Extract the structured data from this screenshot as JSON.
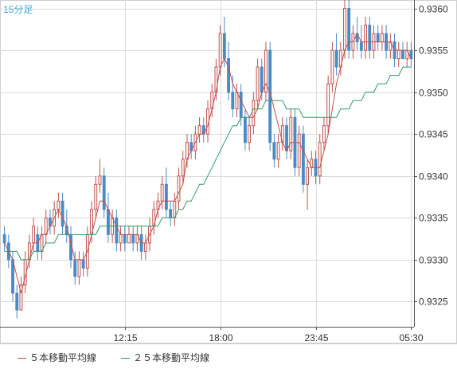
{
  "timeframe": "15分足",
  "legend": [
    {
      "label": "５本移動平均線",
      "color": "#c0504d"
    },
    {
      "label": "２５本移動平均線",
      "color": "#2e9d68"
    }
  ],
  "colors": {
    "up": "#c0504d",
    "down": "#4a8bc6",
    "ma5": "#c0504d",
    "ma25": "#2e9d68",
    "grid": "#dcdcdc",
    "axis": "#555555",
    "timeframe": "#3fa9d8"
  },
  "chart_data": {
    "type": "candlestick",
    "title": "",
    "ylim": [
      0.9322,
      0.9361
    ],
    "yticks": [
      "0.9325",
      "0.9330",
      "0.9335",
      "0.9340",
      "0.9345",
      "0.9350",
      "0.9355",
      "0.9360"
    ],
    "xticks": [
      {
        "label": "12:15",
        "index": 29
      },
      {
        "label": "18:00",
        "index": 52
      },
      {
        "label": "23:45",
        "index": 75
      },
      {
        "label": "05:30",
        "index": 98
      }
    ],
    "grid": true,
    "legend_position": "bottom",
    "candles_ohlc": [
      [
        0.9333,
        0.9334,
        0.9331,
        0.9332
      ],
      [
        0.9332,
        0.9333,
        0.9329,
        0.933
      ],
      [
        0.933,
        0.9331,
        0.9325,
        0.9326
      ],
      [
        0.9326,
        0.9327,
        0.9323,
        0.9324
      ],
      [
        0.9324,
        0.9328,
        0.9324,
        0.9327
      ],
      [
        0.9327,
        0.9331,
        0.9326,
        0.933
      ],
      [
        0.933,
        0.9333,
        0.9329,
        0.9332
      ],
      [
        0.9332,
        0.9335,
        0.9331,
        0.9334
      ],
      [
        0.9333,
        0.9334,
        0.933,
        0.9331
      ],
      [
        0.9331,
        0.9334,
        0.933,
        0.9333
      ],
      [
        0.9333,
        0.9336,
        0.9332,
        0.9335
      ],
      [
        0.9335,
        0.9336,
        0.9333,
        0.9334
      ],
      [
        0.9334,
        0.9337,
        0.9333,
        0.9336
      ],
      [
        0.9336,
        0.9338,
        0.9335,
        0.9337
      ],
      [
        0.9337,
        0.9338,
        0.9333,
        0.9334
      ],
      [
        0.9334,
        0.9336,
        0.9332,
        0.9333
      ],
      [
        0.9333,
        0.9334,
        0.9329,
        0.933
      ],
      [
        0.933,
        0.9331,
        0.9327,
        0.9328
      ],
      [
        0.9328,
        0.9331,
        0.9327,
        0.933
      ],
      [
        0.933,
        0.9331,
        0.9328,
        0.9329
      ],
      [
        0.9329,
        0.9334,
        0.9328,
        0.9333
      ],
      [
        0.9333,
        0.9337,
        0.9332,
        0.9336
      ],
      [
        0.9336,
        0.934,
        0.9335,
        0.9339
      ],
      [
        0.9339,
        0.9342,
        0.9338,
        0.934
      ],
      [
        0.934,
        0.9341,
        0.9335,
        0.9336
      ],
      [
        0.9336,
        0.9338,
        0.9332,
        0.9333
      ],
      [
        0.9333,
        0.9336,
        0.9332,
        0.9335
      ],
      [
        0.9335,
        0.9336,
        0.9331,
        0.9332
      ],
      [
        0.9332,
        0.9334,
        0.9331,
        0.9333
      ],
      [
        0.9333,
        0.9334,
        0.9331,
        0.9332
      ],
      [
        0.9332,
        0.9334,
        0.9332,
        0.9333
      ],
      [
        0.9333,
        0.9334,
        0.9331,
        0.9332
      ],
      [
        0.9332,
        0.9334,
        0.9331,
        0.9333
      ],
      [
        0.9333,
        0.9334,
        0.933,
        0.9331
      ],
      [
        0.9331,
        0.9333,
        0.933,
        0.9332
      ],
      [
        0.9332,
        0.9335,
        0.9331,
        0.9334
      ],
      [
        0.9334,
        0.9337,
        0.9333,
        0.9336
      ],
      [
        0.9336,
        0.9338,
        0.9335,
        0.9337
      ],
      [
        0.9337,
        0.934,
        0.9336,
        0.9339
      ],
      [
        0.9339,
        0.9341,
        0.9335,
        0.9336
      ],
      [
        0.9336,
        0.9337,
        0.9334,
        0.9335
      ],
      [
        0.9335,
        0.9338,
        0.9334,
        0.9337
      ],
      [
        0.9337,
        0.9341,
        0.9336,
        0.934
      ],
      [
        0.934,
        0.9343,
        0.9339,
        0.9342
      ],
      [
        0.9342,
        0.9345,
        0.9341,
        0.9344
      ],
      [
        0.9344,
        0.9345,
        0.9342,
        0.9343
      ],
      [
        0.9343,
        0.9346,
        0.9342,
        0.9345
      ],
      [
        0.9345,
        0.9347,
        0.9344,
        0.9346
      ],
      [
        0.9346,
        0.9347,
        0.9344,
        0.9345
      ],
      [
        0.9345,
        0.9349,
        0.9344,
        0.9348
      ],
      [
        0.9348,
        0.9351,
        0.9347,
        0.935
      ],
      [
        0.935,
        0.9354,
        0.9349,
        0.9353
      ],
      [
        0.9353,
        0.9358,
        0.9352,
        0.9357
      ],
      [
        0.9357,
        0.9359,
        0.9353,
        0.9354
      ],
      [
        0.9354,
        0.9356,
        0.9349,
        0.935
      ],
      [
        0.935,
        0.9352,
        0.9347,
        0.9348
      ],
      [
        0.9348,
        0.9351,
        0.9347,
        0.935
      ],
      [
        0.935,
        0.9351,
        0.9346,
        0.9347
      ],
      [
        0.9347,
        0.9348,
        0.9343,
        0.9344
      ],
      [
        0.9344,
        0.9347,
        0.9343,
        0.9346
      ],
      [
        0.9346,
        0.935,
        0.9345,
        0.9349
      ],
      [
        0.9349,
        0.9354,
        0.9348,
        0.9353
      ],
      [
        0.9353,
        0.9354,
        0.9349,
        0.935
      ],
      [
        0.935,
        0.9356,
        0.9349,
        0.9355
      ],
      [
        0.9355,
        0.9356,
        0.9343,
        0.9344
      ],
      [
        0.9344,
        0.9345,
        0.9341,
        0.9342
      ],
      [
        0.9342,
        0.9345,
        0.9341,
        0.9344
      ],
      [
        0.9344,
        0.9347,
        0.9343,
        0.9346
      ],
      [
        0.9346,
        0.9347,
        0.9342,
        0.9343
      ],
      [
        0.9343,
        0.9348,
        0.9342,
        0.9347
      ],
      [
        0.9347,
        0.9348,
        0.934,
        0.9341
      ],
      [
        0.9341,
        0.9346,
        0.934,
        0.9345
      ],
      [
        0.9345,
        0.9346,
        0.9338,
        0.9339
      ],
      [
        0.9339,
        0.9342,
        0.9336,
        0.9341
      ],
      [
        0.9341,
        0.9343,
        0.934,
        0.9342
      ],
      [
        0.9342,
        0.9343,
        0.9339,
        0.934
      ],
      [
        0.934,
        0.9345,
        0.9339,
        0.9344
      ],
      [
        0.9344,
        0.9347,
        0.9343,
        0.9346
      ],
      [
        0.9346,
        0.9352,
        0.9345,
        0.9351
      ],
      [
        0.9351,
        0.9356,
        0.935,
        0.9355
      ],
      [
        0.9355,
        0.9357,
        0.9352,
        0.9353
      ],
      [
        0.9353,
        0.9356,
        0.9352,
        0.9355
      ],
      [
        0.9355,
        0.9361,
        0.9354,
        0.936
      ],
      [
        0.936,
        0.9361,
        0.9354,
        0.9355
      ],
      [
        0.9355,
        0.9358,
        0.9354,
        0.9357
      ],
      [
        0.9357,
        0.9359,
        0.9355,
        0.9356
      ],
      [
        0.9356,
        0.9358,
        0.9354,
        0.9355
      ],
      [
        0.9355,
        0.9359,
        0.9354,
        0.9358
      ],
      [
        0.9358,
        0.9359,
        0.9354,
        0.9355
      ],
      [
        0.9355,
        0.9358,
        0.9354,
        0.9357
      ],
      [
        0.9357,
        0.9358,
        0.9355,
        0.9356
      ],
      [
        0.9356,
        0.9358,
        0.9355,
        0.9357
      ],
      [
        0.9357,
        0.9358,
        0.9354,
        0.9355
      ],
      [
        0.9355,
        0.9357,
        0.9354,
        0.9356
      ],
      [
        0.9356,
        0.9357,
        0.9353,
        0.9354
      ],
      [
        0.9354,
        0.9356,
        0.9353,
        0.9355
      ],
      [
        0.9355,
        0.9356,
        0.9354,
        0.9354
      ],
      [
        0.9354,
        0.9356,
        0.9353,
        0.9355
      ],
      [
        0.9355,
        0.9356,
        0.9353,
        0.9354
      ]
    ],
    "ma5": [
      0.9332,
      0.9331,
      0.933,
      0.9328,
      0.9326,
      0.9328,
      0.933,
      0.9332,
      0.9332,
      0.9333,
      0.9333,
      0.9334,
      0.9335,
      0.9336,
      0.9335,
      0.9334,
      0.9332,
      0.933,
      0.933,
      0.933,
      0.9331,
      0.9333,
      0.9335,
      0.9337,
      0.9337,
      0.9336,
      0.9335,
      0.9334,
      0.9333,
      0.9333,
      0.9333,
      0.9333,
      0.9333,
      0.9332,
      0.9332,
      0.9333,
      0.9334,
      0.9336,
      0.9337,
      0.9337,
      0.9337,
      0.9337,
      0.9338,
      0.9339,
      0.9342,
      0.9343,
      0.9344,
      0.9345,
      0.9345,
      0.9346,
      0.9348,
      0.935,
      0.9353,
      0.9354,
      0.9353,
      0.9351,
      0.935,
      0.9349,
      0.9348,
      0.9347,
      0.9347,
      0.9348,
      0.935,
      0.9351,
      0.935,
      0.9348,
      0.9346,
      0.9344,
      0.9343,
      0.9344,
      0.9344,
      0.9344,
      0.9343,
      0.9342,
      0.9341,
      0.9341,
      0.9341,
      0.9343,
      0.9345,
      0.9348,
      0.9351,
      0.9353,
      0.9355,
      0.9356,
      0.9356,
      0.9357,
      0.9356,
      0.9356,
      0.9356,
      0.9356,
      0.9356,
      0.9356,
      0.9356,
      0.9356,
      0.9355,
      0.9355,
      0.9355,
      0.9355,
      0.9354
    ],
    "ma25": [
      0.9331,
      0.9331,
      0.9331,
      0.9331,
      0.933,
      0.933,
      0.933,
      0.9331,
      0.9331,
      0.9331,
      0.9332,
      0.9332,
      0.9332,
      0.9333,
      0.9333,
      0.9333,
      0.9333,
      0.9333,
      0.9333,
      0.9333,
      0.9333,
      0.9333,
      0.9333,
      0.9334,
      0.9334,
      0.9334,
      0.9334,
      0.9334,
      0.9334,
      0.9334,
      0.9334,
      0.9334,
      0.9334,
      0.9334,
      0.9334,
      0.9334,
      0.9334,
      0.9334,
      0.9335,
      0.9335,
      0.9335,
      0.9335,
      0.9336,
      0.9336,
      0.9337,
      0.9337,
      0.9338,
      0.9339,
      0.9339,
      0.934,
      0.9341,
      0.9342,
      0.9343,
      0.9344,
      0.9345,
      0.9346,
      0.9346,
      0.9347,
      0.9347,
      0.9347,
      0.9348,
      0.9348,
      0.9348,
      0.9349,
      0.9349,
      0.9349,
      0.9349,
      0.9349,
      0.9348,
      0.9348,
      0.9348,
      0.9348,
      0.9347,
      0.9347,
      0.9347,
      0.9347,
      0.9347,
      0.9347,
      0.9347,
      0.9347,
      0.9347,
      0.9348,
      0.9348,
      0.9348,
      0.9349,
      0.9349,
      0.9349,
      0.935,
      0.935,
      0.935,
      0.9351,
      0.9351,
      0.9351,
      0.9352,
      0.9352,
      0.9352,
      0.9353,
      0.9353,
      0.9353
    ]
  }
}
